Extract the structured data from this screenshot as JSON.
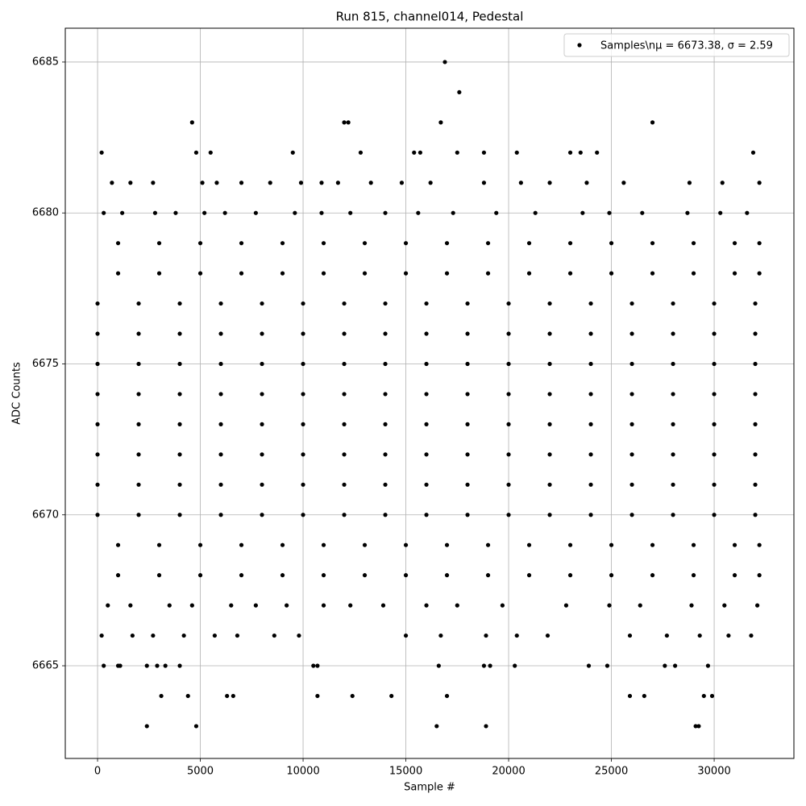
{
  "chart_data": {
    "type": "scatter",
    "title": "Run 815, channel014, Pedestal",
    "xlabel": "Sample #",
    "ylabel": "ADC Counts",
    "xlim": [
      -1570,
      33880
    ],
    "ylim": [
      6661.93,
      6686.12
    ],
    "xticks": [
      0,
      5000,
      10000,
      15000,
      20000,
      25000,
      30000
    ],
    "yticks": [
      6665,
      6670,
      6675,
      6680,
      6685
    ],
    "grid": true,
    "legend": "upper right",
    "series": [
      {
        "name": "Samples\\nμ = 6673.38, σ = 2.59",
        "color": "#000000",
        "x": [
          0,
          2000,
          4000,
          6000,
          8000,
          10000,
          12000,
          14000,
          16000,
          18000,
          20000,
          22000,
          24000,
          26000,
          28000,
          30000,
          32000,
          0,
          2000,
          4000,
          6000,
          8000,
          10000,
          12000,
          14000,
          16000,
          18000,
          20000,
          22000,
          24000,
          26000,
          28000,
          30000,
          32000,
          0,
          2000,
          4000,
          6000,
          8000,
          10000,
          12000,
          14000,
          16000,
          18000,
          20000,
          22000,
          24000,
          26000,
          28000,
          30000,
          32000,
          0,
          2000,
          4000,
          6000,
          8000,
          10000,
          12000,
          14000,
          16000,
          18000,
          20000,
          22000,
          24000,
          26000,
          28000,
          30000,
          32000,
          0,
          2000,
          4000,
          6000,
          8000,
          10000,
          12000,
          14000,
          16000,
          18000,
          20000,
          22000,
          24000,
          26000,
          28000,
          30000,
          32000,
          0,
          2000,
          4000,
          6000,
          8000,
          10000,
          12000,
          14000,
          16000,
          18000,
          20000,
          22000,
          24000,
          26000,
          28000,
          30000,
          32000,
          0,
          2000,
          4000,
          6000,
          8000,
          10000,
          12000,
          14000,
          16000,
          18000,
          20000,
          22000,
          24000,
          26000,
          28000,
          30000,
          32000,
          0,
          2000,
          4000,
          6000,
          8000,
          10000,
          12000,
          14000,
          16000,
          18000,
          20000,
          22000,
          24000,
          26000,
          28000,
          30000,
          32000,
          1000,
          3000,
          5000,
          7000,
          9000,
          11000,
          13000,
          15000,
          17000,
          19000,
          21000,
          23000,
          25000,
          27000,
          29000,
          31000,
          32200,
          1000,
          3000,
          5000,
          7000,
          9000,
          11000,
          13000,
          15000,
          17000,
          19000,
          21000,
          23000,
          25000,
          27000,
          29000,
          31000,
          32200,
          1000,
          3000,
          5000,
          7000,
          9000,
          11000,
          13000,
          15000,
          17000,
          19000,
          21000,
          23000,
          25000,
          27000,
          29000,
          31000,
          32200,
          1000,
          3000,
          5000,
          7000,
          9000,
          11000,
          13000,
          15000,
          17000,
          19000,
          21000,
          23000,
          25000,
          27000,
          29000,
          31000,
          32200,
          500,
          1600,
          3500,
          4600,
          6500,
          7700,
          9200,
          11000,
          12300,
          13900,
          16000,
          17500,
          19700,
          22800,
          24900,
          26400,
          28900,
          30500,
          32100,
          200,
          1700,
          2700,
          4200,
          5700,
          6800,
          8600,
          9800,
          15000,
          16700,
          18900,
          20400,
          21900,
          25900,
          27700,
          29300,
          30700,
          31800,
          300,
          1200,
          2800,
          3800,
          5200,
          6200,
          7700,
          9600,
          10900,
          12300,
          14000,
          15600,
          17300,
          19400,
          21300,
          23600,
          24900,
          26500,
          28700,
          30300,
          31600,
          700,
          1600,
          2700,
          5100,
          5800,
          7000,
          8400,
          9900,
          10900,
          11700,
          13300,
          14800,
          16200,
          18800,
          20600,
          22000,
          23800,
          25600,
          28800,
          30400,
          32200,
          2400,
          4800,
          16500,
          18900,
          29100,
          29250,
          3100,
          4400,
          6300,
          6600,
          10700,
          12400,
          14300,
          17000,
          25900,
          26600,
          29500,
          29900,
          300,
          1000,
          1100,
          2400,
          2900,
          3300,
          4000,
          10500,
          10700,
          16600,
          18800,
          19100,
          20300,
          23900,
          24800,
          27600,
          28100,
          29700,
          200,
          4800,
          5500,
          9500,
          12800,
          15400,
          15700,
          17500,
          18800,
          20400,
          23000,
          23500,
          24300,
          31900,
          4600,
          12000,
          12200,
          16700,
          27000,
          17600,
          16900
        ],
        "y": [
          6670,
          6670,
          6670,
          6670,
          6670,
          6670,
          6670,
          6670,
          6670,
          6670,
          6670,
          6670,
          6670,
          6670,
          6670,
          6670,
          6670,
          6671,
          6671,
          6671,
          6671,
          6671,
          6671,
          6671,
          6671,
          6671,
          6671,
          6671,
          6671,
          6671,
          6671,
          6671,
          6671,
          6671,
          6672,
          6672,
          6672,
          6672,
          6672,
          6672,
          6672,
          6672,
          6672,
          6672,
          6672,
          6672,
          6672,
          6672,
          6672,
          6672,
          6672,
          6673,
          6673,
          6673,
          6673,
          6673,
          6673,
          6673,
          6673,
          6673,
          6673,
          6673,
          6673,
          6673,
          6673,
          6673,
          6673,
          6673,
          6674,
          6674,
          6674,
          6674,
          6674,
          6674,
          6674,
          6674,
          6674,
          6674,
          6674,
          6674,
          6674,
          6674,
          6674,
          6674,
          6674,
          6675,
          6675,
          6675,
          6675,
          6675,
          6675,
          6675,
          6675,
          6675,
          6675,
          6675,
          6675,
          6675,
          6675,
          6675,
          6675,
          6675,
          6676,
          6676,
          6676,
          6676,
          6676,
          6676,
          6676,
          6676,
          6676,
          6676,
          6676,
          6676,
          6676,
          6676,
          6676,
          6676,
          6676,
          6677,
          6677,
          6677,
          6677,
          6677,
          6677,
          6677,
          6677,
          6677,
          6677,
          6677,
          6677,
          6677,
          6677,
          6677,
          6677,
          6677,
          6668,
          6668,
          6668,
          6668,
          6668,
          6668,
          6668,
          6668,
          6668,
          6668,
          6668,
          6668,
          6668,
          6668,
          6668,
          6668,
          6668,
          6669,
          6669,
          6669,
          6669,
          6669,
          6669,
          6669,
          6669,
          6669,
          6669,
          6669,
          6669,
          6669,
          6669,
          6669,
          6669,
          6669,
          6678,
          6678,
          6678,
          6678,
          6678,
          6678,
          6678,
          6678,
          6678,
          6678,
          6678,
          6678,
          6678,
          6678,
          6678,
          6678,
          6678,
          6679,
          6679,
          6679,
          6679,
          6679,
          6679,
          6679,
          6679,
          6679,
          6679,
          6679,
          6679,
          6679,
          6679,
          6679,
          6679,
          6679,
          6667,
          6667,
          6667,
          6667,
          6667,
          6667,
          6667,
          6667,
          6667,
          6667,
          6667,
          6667,
          6667,
          6667,
          6667,
          6667,
          6667,
          6667,
          6667,
          6666,
          6666,
          6666,
          6666,
          6666,
          6666,
          6666,
          6666,
          6666,
          6666,
          6666,
          6666,
          6666,
          6666,
          6666,
          6666,
          6666,
          6666,
          6680,
          6680,
          6680,
          6680,
          6680,
          6680,
          6680,
          6680,
          6680,
          6680,
          6680,
          6680,
          6680,
          6680,
          6680,
          6680,
          6680,
          6680,
          6680,
          6680,
          6680,
          6681,
          6681,
          6681,
          6681,
          6681,
          6681,
          6681,
          6681,
          6681,
          6681,
          6681,
          6681,
          6681,
          6681,
          6681,
          6681,
          6681,
          6681,
          6681,
          6681,
          6681,
          6663,
          6663,
          6663,
          6663,
          6663,
          6663,
          6664,
          6664,
          6664,
          6664,
          6664,
          6664,
          6664,
          6664,
          6664,
          6664,
          6664,
          6664,
          6665,
          6665,
          6665,
          6665,
          6665,
          6665,
          6665,
          6665,
          6665,
          6665,
          6665,
          6665,
          6665,
          6665,
          6665,
          6665,
          6665,
          6665,
          6682,
          6682,
          6682,
          6682,
          6682,
          6682,
          6682,
          6682,
          6682,
          6682,
          6682,
          6682,
          6682,
          6682,
          6683,
          6683,
          6683,
          6683,
          6683,
          6684,
          6685
        ]
      }
    ]
  }
}
